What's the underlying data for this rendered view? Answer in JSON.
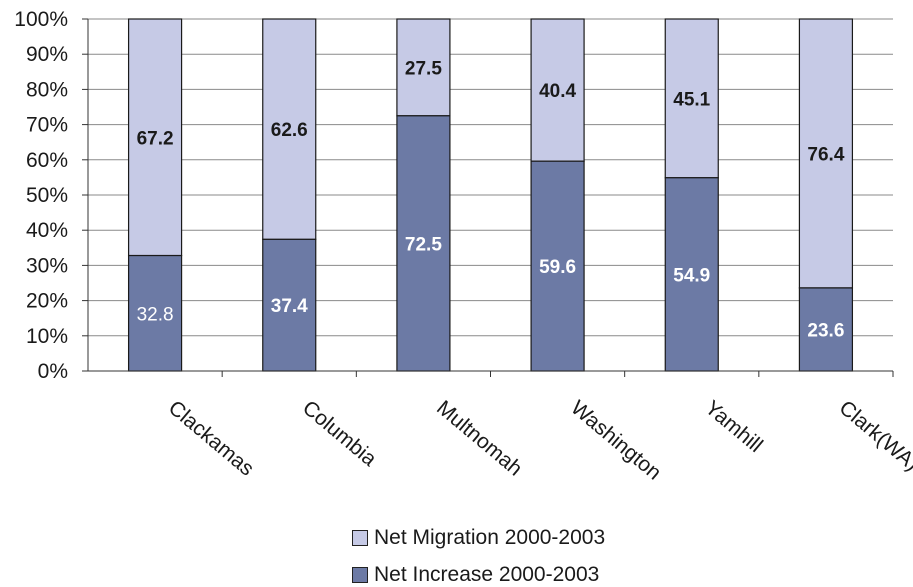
{
  "chart_data": {
    "type": "bar",
    "stacked": true,
    "percent_stacked": true,
    "categories": [
      "Clackamas",
      "Columbia",
      "Multnomah",
      "Washington",
      "Yamhill",
      "Clark(WA)"
    ],
    "series": [
      {
        "name": "Net Increase 2000-2003",
        "values": [
          32.8,
          37.4,
          72.5,
          59.6,
          54.9,
          23.6
        ],
        "color": "#6c7aa5"
      },
      {
        "name": "Net Migration 2000-2003",
        "values": [
          67.2,
          62.6,
          27.5,
          40.4,
          45.1,
          76.4
        ],
        "color": "#c6cae6"
      }
    ],
    "y_ticks": [
      "0%",
      "10%",
      "20%",
      "30%",
      "40%",
      "50%",
      "60%",
      "70%",
      "80%",
      "90%",
      "100%"
    ],
    "ylim": [
      0,
      100
    ],
    "grid": true,
    "legend_position": "bottom"
  },
  "legend": {
    "items": [
      {
        "label": "Net Migration 2000-2003",
        "color": "#c6cae6"
      },
      {
        "label": "Net Increase 2000-2003",
        "color": "#6c7aa5"
      }
    ]
  }
}
